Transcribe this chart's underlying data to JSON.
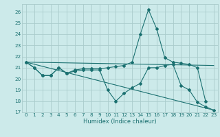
{
  "xlabel": "Humidex (Indice chaleur)",
  "background_color": "#cceaea",
  "grid_color": "#aacccc",
  "line_color": "#1a7070",
  "xlim": [
    -0.5,
    23.5
  ],
  "ylim": [
    17,
    26.7
  ],
  "yticks": [
    17,
    18,
    19,
    20,
    21,
    22,
    23,
    24,
    25,
    26
  ],
  "xticks": [
    0,
    1,
    2,
    3,
    4,
    5,
    6,
    7,
    8,
    9,
    10,
    11,
    12,
    13,
    14,
    15,
    16,
    17,
    18,
    19,
    20,
    21,
    22,
    23
  ],
  "lines": [
    {
      "x": [
        0,
        1,
        2,
        3,
        4,
        5,
        6,
        7,
        8,
        9,
        10,
        11,
        12,
        13,
        14,
        15,
        16,
        17,
        18,
        19,
        20,
        21,
        22
      ],
      "y": [
        21.5,
        21.0,
        20.3,
        20.3,
        21.0,
        20.5,
        20.8,
        20.9,
        20.9,
        20.9,
        21.0,
        21.1,
        21.2,
        21.5,
        24.0,
        26.2,
        24.5,
        21.9,
        21.5,
        21.4,
        21.3,
        21.0,
        18.0
      ]
    },
    {
      "x": [
        0,
        1,
        2,
        3,
        4,
        5,
        6,
        7,
        8,
        9,
        10,
        11,
        12,
        13,
        14,
        15,
        16,
        17,
        18,
        19,
        20,
        21,
        22,
        23
      ],
      "y": [
        21.5,
        21.0,
        20.3,
        20.3,
        21.0,
        20.5,
        20.7,
        20.8,
        20.8,
        20.8,
        19.0,
        18.0,
        18.7,
        19.2,
        19.6,
        21.0,
        21.0,
        21.2,
        21.3,
        19.4,
        19.0,
        17.9,
        17.5,
        17.2
      ]
    },
    {
      "x": [
        0,
        23
      ],
      "y": [
        21.5,
        17.2
      ]
    },
    {
      "x": [
        0,
        23
      ],
      "y": [
        21.5,
        21.2
      ]
    }
  ]
}
